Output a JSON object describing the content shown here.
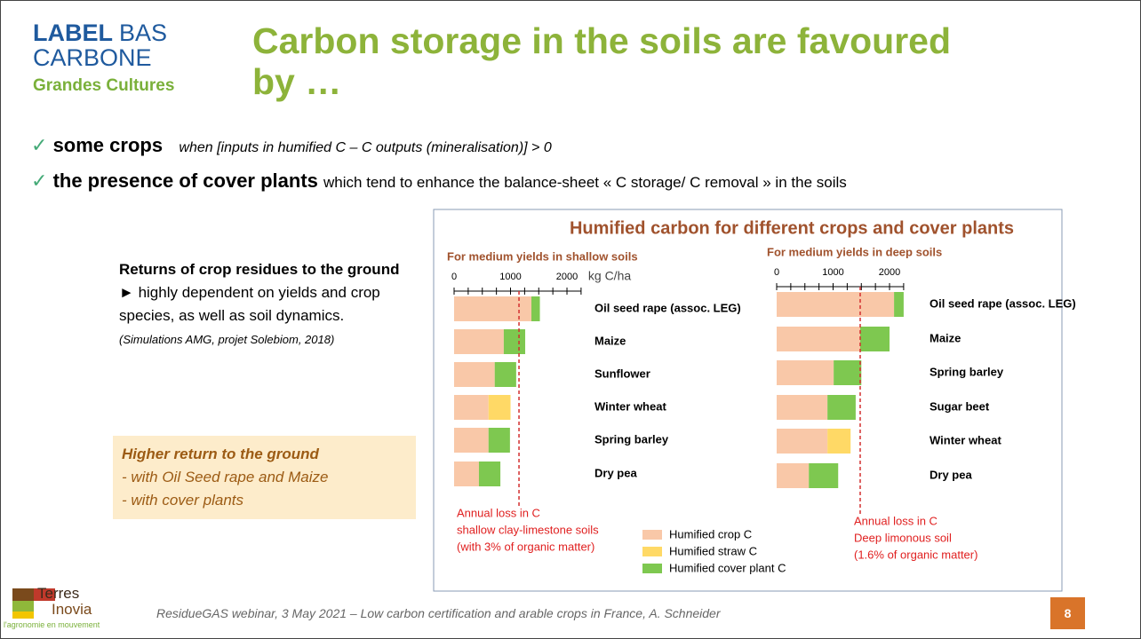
{
  "logo": {
    "line1a": "LABEL",
    "line1b": "BAS",
    "line2": "CARBONE",
    "line3": "Grandes Cultures"
  },
  "header": {
    "title": "Carbon storage in the soils are favoured by …"
  },
  "bullets": [
    {
      "bold": "some crops",
      "text": "when [inputs in humified C – C outputs (mineralisation)] > 0"
    },
    {
      "bold": "the presence of cover plants",
      "text": "which tend to enhance the balance-sheet « C storage/ C removal » in the soils"
    }
  ],
  "sidebar": {
    "heading": "Returns of crop residues to the ground",
    "text": "highly dependent on yields and crop species, as well as soil dynamics.",
    "citation": "(Simulations AMG, projet Solebiom, 2018)",
    "highlight": [
      "Higher return to the ground",
      "- with Oil Seed rape and Maize",
      "- with cover plants"
    ]
  },
  "figure_title": "Humified carbon for different crops and cover plants",
  "chart_data": [
    {
      "type": "stacked-hbar",
      "subtitle": "For medium yields in shallow soils",
      "xlabel": "kg C/ha",
      "xlim": [
        0,
        2250
      ],
      "xticks": [
        0,
        1000,
        2000
      ],
      "minor_xticks": [
        250,
        500,
        750,
        1250,
        1500,
        1750,
        2250
      ],
      "categories": [
        "Oil seed rape (assoc. LEG)",
        "Maize",
        "Sunflower",
        "Winter wheat",
        "Spring barley",
        "Dry pea"
      ],
      "series": [
        {
          "name": "Humified crop C",
          "color": "#f9c8a8",
          "values": [
            1370,
            880,
            720,
            610,
            610,
            440
          ]
        },
        {
          "name": "Humified straw C",
          "color": "#ffd966",
          "values": [
            null,
            null,
            null,
            390,
            null,
            null
          ]
        },
        {
          "name": "Humified cover plant C",
          "color": "#7ec850",
          "values": [
            150,
            380,
            380,
            null,
            380,
            380
          ]
        }
      ],
      "loss_line": 1150,
      "annotation": [
        "Annual loss in C",
        "shallow clay-limestone soils",
        "(with 3% of organic matter)"
      ]
    },
    {
      "type": "stacked-hbar",
      "subtitle": "For medium yields in deep soils",
      "xlim": [
        0,
        2250
      ],
      "xticks": [
        0,
        1000,
        2000
      ],
      "minor_xticks": [
        250,
        500,
        750,
        1250,
        1500,
        1750,
        2250
      ],
      "categories": [
        "Oil seed rape (assoc. LEG)",
        "Maize",
        "Spring barley",
        "Sugar beet",
        "Winter wheat",
        "Dry pea"
      ],
      "series": [
        {
          "color": "#f9c8a8",
          "values": [
            2080,
            1480,
            1010,
            900,
            900,
            570
          ]
        },
        {
          "color": "#ffd966",
          "values": [
            null,
            null,
            null,
            null,
            410,
            null
          ]
        },
        {
          "color": "#7ec850",
          "values": [
            170,
            520,
            490,
            500,
            null,
            520
          ]
        }
      ],
      "loss_line": 1480,
      "annotation": [
        "Annual loss in C",
        "Deep limonous soil",
        "(1.6% of organic matter)"
      ]
    }
  ],
  "footer": {
    "logo1": "Terres",
    "logo2": "Inovia",
    "logo3": "l'agronomie en mouvement",
    "text": "ResidueGAS webinar, 3 May 2021 – Low carbon certification and arable crops in France, A. Schneider",
    "page": "8"
  }
}
